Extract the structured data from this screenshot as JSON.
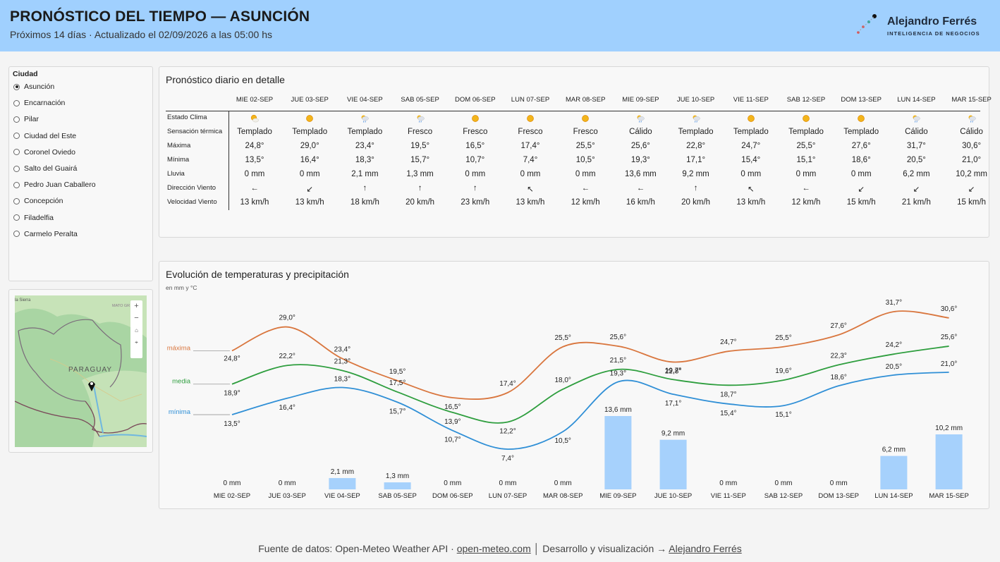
{
  "header": {
    "title": "PRONÓSTICO DEL TIEMPO — ASUNCIÓN",
    "subtitle": "Próximos 14 días · Actualizado el 02/09/2026 a las 05:00 hs",
    "brand_name": "Alejandro Ferrés",
    "brand_tagline": "INTELIGENCIA DE NEGOCIOS"
  },
  "sidebar": {
    "label": "Ciudad",
    "selected": "Asunción",
    "cities": [
      "Asunción",
      "Encarnación",
      "Pilar",
      "Ciudad del Este",
      "Coronel Oviedo",
      "Salto del Guairá",
      "Pedro Juan Caballero",
      "Concepción",
      "Filadelfia",
      "Carmelo Peralta"
    ]
  },
  "map": {
    "country_label": "PARAGUAY",
    "place_topleft": "la Sierra",
    "place_topright": "MATO GR",
    "controls": [
      "+",
      "−"
    ]
  },
  "detail": {
    "title": "Pronóstico diario en detalle",
    "row_labels": [
      "Estado Clima",
      "Sensación térmica",
      "Máxima",
      "Mínima",
      "Lluvia",
      "Dirección Viento",
      "Velocidad Viento"
    ],
    "days": [
      "MIE 02-SEP",
      "JUE 03-SEP",
      "VIE 04-SEP",
      "SAB 05-SEP",
      "DOM 06-SEP",
      "LUN 07-SEP",
      "MAR 08-SEP",
      "MIE 09-SEP",
      "JUE 10-SEP",
      "VIE 11-SEP",
      "SAB 12-SEP",
      "DOM 13-SEP",
      "LUN 14-SEP",
      "MAR 15-SEP"
    ],
    "weather_icons": [
      "partly-sunny-icon",
      "sun-icon",
      "rain-icon",
      "rain-icon",
      "sun-icon",
      "sun-icon",
      "sun-icon",
      "rain-icon",
      "rain-icon",
      "sun-icon",
      "sun-icon",
      "sun-icon",
      "rain-icon",
      "rain-icon"
    ],
    "sensation": [
      "Templado",
      "Templado",
      "Templado",
      "Fresco",
      "Fresco",
      "Fresco",
      "Fresco",
      "Cálido",
      "Templado",
      "Templado",
      "Templado",
      "Templado",
      "Cálido",
      "Cálido"
    ],
    "max": [
      "24,8°",
      "29,0°",
      "23,4°",
      "19,5°",
      "16,5°",
      "17,4°",
      "25,5°",
      "25,6°",
      "22,8°",
      "24,7°",
      "25,5°",
      "27,6°",
      "31,7°",
      "30,6°"
    ],
    "min": [
      "13,5°",
      "16,4°",
      "18,3°",
      "15,7°",
      "10,7°",
      "7,4°",
      "10,5°",
      "19,3°",
      "17,1°",
      "15,4°",
      "15,1°",
      "18,6°",
      "20,5°",
      "21,0°"
    ],
    "rain": [
      "0 mm",
      "0 mm",
      "2,1 mm",
      "1,3 mm",
      "0 mm",
      "0 mm",
      "0 mm",
      "13,6 mm",
      "9,2 mm",
      "0 mm",
      "0 mm",
      "0 mm",
      "6,2 mm",
      "10,2 mm"
    ],
    "wind_dir": [
      "←",
      "↙",
      "↑",
      "↑",
      "↑",
      "↖",
      "←",
      "←",
      "↑",
      "↖",
      "←",
      "↙",
      "↙",
      "↙"
    ],
    "wind_speed": [
      "13 km/h",
      "13 km/h",
      "18 km/h",
      "20 km/h",
      "23 km/h",
      "13 km/h",
      "12 km/h",
      "16 km/h",
      "20 km/h",
      "13 km/h",
      "12 km/h",
      "15 km/h",
      "21 km/h",
      "15 km/h"
    ]
  },
  "chart_data": {
    "type": "line",
    "title": "Evolución de temperaturas y precipitación",
    "subtitle": "en mm y °C",
    "categories": [
      "MIE 02-SEP",
      "JUE 03-SEP",
      "VIE 04-SEP",
      "SAB 05-SEP",
      "DOM 06-SEP",
      "LUN 07-SEP",
      "MAR 08-SEP",
      "MIE 09-SEP",
      "JUE 10-SEP",
      "VIE 11-SEP",
      "SAB 12-SEP",
      "DOM 13-SEP",
      "LUN 14-SEP",
      "MAR 15-SEP"
    ],
    "series": [
      {
        "name": "máxima",
        "color": "#d9763e",
        "values": [
          24.8,
          29.0,
          23.4,
          19.5,
          16.5,
          17.4,
          25.5,
          25.6,
          22.8,
          24.7,
          25.5,
          27.6,
          31.7,
          30.6
        ]
      },
      {
        "name": "media",
        "color": "#2e9e3e",
        "values": [
          18.9,
          22.2,
          21.3,
          17.5,
          13.9,
          12.2,
          18.0,
          21.5,
          19.7,
          18.7,
          19.6,
          22.3,
          24.2,
          25.6
        ]
      },
      {
        "name": "mínima",
        "color": "#2f8fd6",
        "values": [
          13.5,
          16.4,
          18.3,
          15.7,
          10.7,
          7.4,
          10.5,
          19.3,
          17.1,
          15.4,
          15.1,
          18.6,
          20.5,
          21.0
        ]
      }
    ],
    "precipitation": {
      "color": "#a6d1fc",
      "values": [
        0,
        0,
        2.1,
        1.3,
        0,
        0,
        0,
        13.6,
        9.2,
        0,
        0,
        0,
        6.2,
        10.2
      ],
      "labels": [
        "0 mm",
        "0 mm",
        "2,1 mm",
        "1,3 mm",
        "0 mm",
        "0 mm",
        "0 mm",
        "13,6 mm",
        "9,2 mm",
        "0 mm",
        "0 mm",
        "0 mm",
        "6,2 mm",
        "10,2 mm"
      ]
    },
    "temp_labels": {
      "máxima": [
        "24,8°",
        "29,0°",
        "23,4°",
        "19,5°",
        "16,5°",
        "17,4°",
        "25,5°",
        "25,6°",
        "22,8°",
        "24,7°",
        "25,5°",
        "27,6°",
        "31,7°",
        "30,6°"
      ],
      "media": [
        "18,9°",
        "22,2°",
        "21,3°",
        "17,5°",
        "13,9°",
        "12,2°",
        "18,0°",
        "21,5°",
        "19,7°",
        "18,7°",
        "19,6°",
        "22,3°",
        "24,2°",
        "25,6°"
      ],
      "mínima": [
        "13,5°",
        "16,4°",
        "18,3°",
        "15,7°",
        "10,7°",
        "7,4°",
        "10,5°",
        "19,3°",
        "17,1°",
        "15,4°",
        "15,1°",
        "18,6°",
        "20,5°",
        "21,0°"
      ]
    }
  },
  "footer": {
    "source_prefix": "Fuente de datos: Open-Meteo Weather API · ",
    "source_link": "open-meteo.com",
    "separator": " │ ",
    "dev_prefix": "Desarrollo y visualización → ",
    "dev_link": "Alejandro Ferrés"
  }
}
